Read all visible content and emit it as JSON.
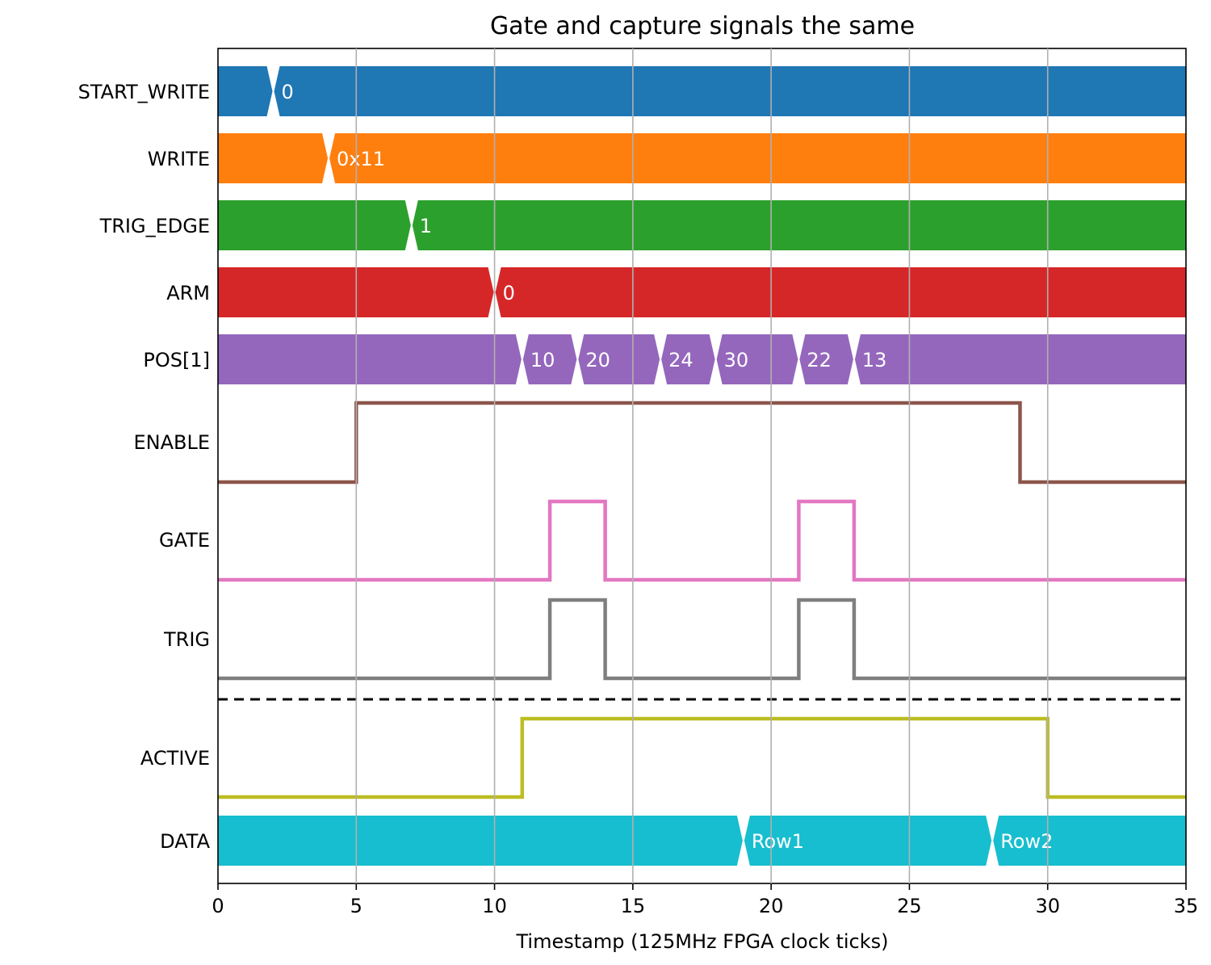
{
  "chart_data": {
    "type": "timing-diagram",
    "title": "Gate and capture signals the same",
    "xlabel": "Timestamp (125MHz FPGA clock ticks)",
    "xlim": [
      0,
      35
    ],
    "xticks": [
      0,
      5,
      10,
      15,
      20,
      25,
      30,
      35
    ],
    "grid": "vertical",
    "separator_after": "TRIG",
    "signals": [
      {
        "name": "START_WRITE",
        "kind": "bus",
        "color": "#1f77b4",
        "segments": [
          {
            "start": 0,
            "end": 2,
            "label": ""
          },
          {
            "start": 2,
            "end": 35,
            "label": "0"
          }
        ]
      },
      {
        "name": "WRITE",
        "kind": "bus",
        "color": "#ff7f0e",
        "segments": [
          {
            "start": 0,
            "end": 4,
            "label": ""
          },
          {
            "start": 4,
            "end": 35,
            "label": "0x11"
          }
        ]
      },
      {
        "name": "TRIG_EDGE",
        "kind": "bus",
        "color": "#2ca02c",
        "segments": [
          {
            "start": 0,
            "end": 7,
            "label": ""
          },
          {
            "start": 7,
            "end": 35,
            "label": "1"
          }
        ]
      },
      {
        "name": "ARM",
        "kind": "bus",
        "color": "#d62728",
        "segments": [
          {
            "start": 0,
            "end": 10,
            "label": ""
          },
          {
            "start": 10,
            "end": 35,
            "label": "0"
          }
        ]
      },
      {
        "name": "POS[1]",
        "kind": "bus",
        "color": "#9467bd",
        "segments": [
          {
            "start": 0,
            "end": 11,
            "label": ""
          },
          {
            "start": 11,
            "end": 13,
            "label": "10"
          },
          {
            "start": 13,
            "end": 16,
            "label": "20"
          },
          {
            "start": 16,
            "end": 18,
            "label": "24"
          },
          {
            "start": 18,
            "end": 21,
            "label": "30"
          },
          {
            "start": 21,
            "end": 23,
            "label": "22"
          },
          {
            "start": 23,
            "end": 35,
            "label": "13"
          }
        ]
      },
      {
        "name": "ENABLE",
        "kind": "bit",
        "color": "#8c564b",
        "steps": [
          [
            0,
            0
          ],
          [
            5,
            1
          ],
          [
            29,
            0
          ],
          [
            35,
            0
          ]
        ]
      },
      {
        "name": "GATE",
        "kind": "bit",
        "color": "#e377c2",
        "steps": [
          [
            0,
            0
          ],
          [
            12,
            1
          ],
          [
            14,
            0
          ],
          [
            21,
            1
          ],
          [
            23,
            0
          ],
          [
            35,
            0
          ]
        ]
      },
      {
        "name": "TRIG",
        "kind": "bit",
        "color": "#7f7f7f",
        "steps": [
          [
            0,
            0
          ],
          [
            12,
            1
          ],
          [
            14,
            0
          ],
          [
            21,
            1
          ],
          [
            23,
            0
          ],
          [
            35,
            0
          ]
        ]
      },
      {
        "name": "ACTIVE",
        "kind": "bit",
        "color": "#bcbd22",
        "steps": [
          [
            0,
            0
          ],
          [
            11,
            1
          ],
          [
            30,
            0
          ],
          [
            35,
            0
          ]
        ]
      },
      {
        "name": "DATA",
        "kind": "bus",
        "color": "#17becf",
        "segments": [
          {
            "start": 0,
            "end": 19,
            "label": ""
          },
          {
            "start": 19,
            "end": 28,
            "label": "Row1"
          },
          {
            "start": 28,
            "end": 35,
            "label": "Row2"
          }
        ]
      }
    ]
  }
}
